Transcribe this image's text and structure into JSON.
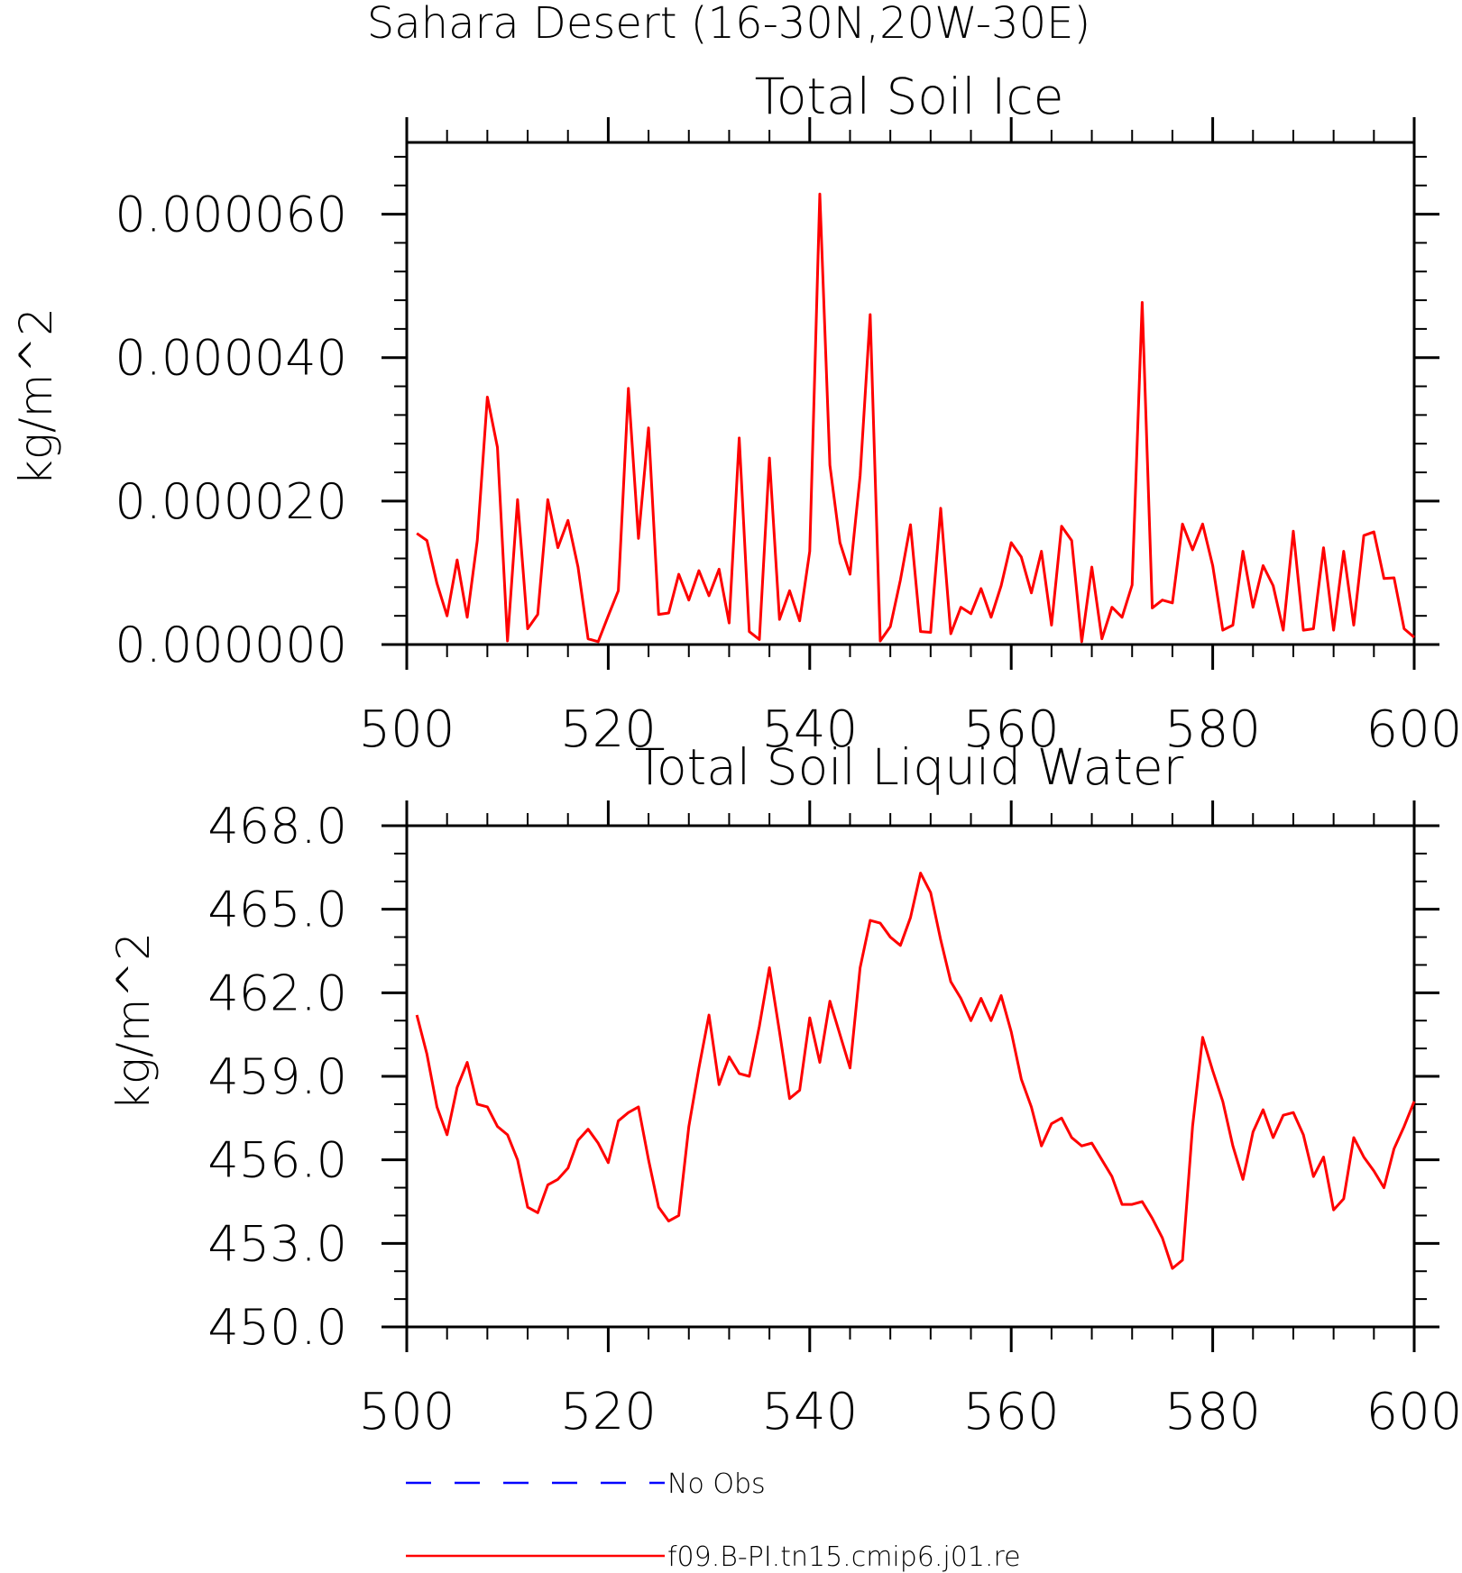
{
  "figure": {
    "suptitle": "Sahara Desert (16-30N,20W-30E)"
  },
  "chart_data": [
    {
      "type": "line",
      "title": "Total Soil Ice",
      "xlabel": "",
      "ylabel": "kg/m^2",
      "xlim": [
        500,
        600
      ],
      "ylim": [
        0,
        7e-05
      ],
      "x_ticks": [
        "500",
        "520",
        "540",
        "560",
        "580",
        "600"
      ],
      "y_ticks": [
        "0.000000",
        "0.000020",
        "0.000040",
        "0.000060"
      ],
      "y_tick_values": [
        0,
        2e-05,
        4e-05,
        6e-05
      ],
      "grid": false,
      "series": [
        {
          "name": "f09.B-PI.tn15.cmip6.j01.re",
          "color": "#ff0000",
          "x_start": 501,
          "x_step": 1,
          "values": [
            1.55e-05,
            1.45e-05,
            8.5e-06,
            4e-06,
            1.18e-05,
            3.8e-06,
            1.45e-05,
            3.45e-05,
            2.75e-05,
            5e-07,
            2.02e-05,
            2.2e-06,
            4.2e-06,
            2.02e-05,
            1.35e-05,
            1.73e-05,
            1.08e-05,
            8e-07,
            4e-07,
            4e-06,
            7.5e-06,
            3.57e-05,
            1.48e-05,
            3.02e-05,
            4.2e-06,
            4.4e-06,
            9.8e-06,
            6.2e-06,
            1.03e-05,
            6.8e-06,
            1.05e-05,
            3e-06,
            2.88e-05,
            1.8e-06,
            7e-07,
            2.6e-05,
            3.5e-06,
            7.5e-06,
            3.3e-06,
            1.3e-05,
            6.28e-05,
            2.5e-05,
            1.42e-05,
            9.8e-06,
            2.35e-05,
            4.6e-05,
            5e-07,
            2.5e-06,
            9e-06,
            1.67e-05,
            1.8e-06,
            1.7e-06,
            1.9e-05,
            1.5e-06,
            5.2e-06,
            4.3e-06,
            7.8e-06,
            3.8e-06,
            8.2e-06,
            1.42e-05,
            1.22e-05,
            7.2e-06,
            1.3e-05,
            2.7e-06,
            1.65e-05,
            1.45e-05,
            4e-07,
            1.08e-05,
            8e-07,
            5.2e-06,
            3.8e-06,
            8.3e-06,
            4.77e-05,
            5.1e-06,
            6.2e-06,
            5.8e-06,
            1.68e-05,
            1.32e-05,
            1.68e-05,
            1.1e-05,
            2e-06,
            2.7e-06,
            1.3e-05,
            5.2e-06,
            1.1e-05,
            8.2e-06,
            2e-06,
            1.58e-05,
            2e-06,
            2.2e-06,
            1.35e-05,
            2e-06,
            1.3e-05,
            2.7e-06,
            1.52e-05,
            1.57e-05,
            9.2e-06,
            9.3e-06,
            2.2e-06,
            1e-06
          ]
        }
      ]
    },
    {
      "type": "line",
      "title": "Total Soil Liquid Water",
      "xlabel": "",
      "ylabel": "kg/m^2",
      "xlim": [
        500,
        600
      ],
      "ylim": [
        450,
        468
      ],
      "x_ticks": [
        "500",
        "520",
        "540",
        "560",
        "580",
        "600"
      ],
      "y_ticks": [
        "450.0",
        "453.0",
        "456.0",
        "459.0",
        "462.0",
        "465.0",
        "468.0"
      ],
      "y_tick_values": [
        450,
        453,
        456,
        459,
        462,
        465,
        468
      ],
      "grid": false,
      "series": [
        {
          "name": "f09.B-PI.tn15.cmip6.j01.re",
          "color": "#ff0000",
          "x_start": 501,
          "x_step": 1,
          "values": [
            461.2,
            459.8,
            457.9,
            456.9,
            458.6,
            459.5,
            458.0,
            457.9,
            457.2,
            456.9,
            456.0,
            454.3,
            454.1,
            455.1,
            455.3,
            455.7,
            456.7,
            457.1,
            456.6,
            455.9,
            457.4,
            457.7,
            457.9,
            456.0,
            454.3,
            453.8,
            454.0,
            457.2,
            459.3,
            461.2,
            458.7,
            459.7,
            459.1,
            459.0,
            460.8,
            462.9,
            460.6,
            458.2,
            458.5,
            461.1,
            459.5,
            461.7,
            460.5,
            459.3,
            462.9,
            464.6,
            464.5,
            464.0,
            463.7,
            464.7,
            466.3,
            465.6,
            463.9,
            462.4,
            461.8,
            461.0,
            461.8,
            461.0,
            461.9,
            460.6,
            458.9,
            457.9,
            456.5,
            457.3,
            457.5,
            456.8,
            456.5,
            456.6,
            456.0,
            455.4,
            454.4,
            454.4,
            454.5,
            453.9,
            453.2,
            452.1,
            452.4,
            457.2,
            460.4,
            459.2,
            458.1,
            456.5,
            455.3,
            457.0,
            457.8,
            456.8,
            457.6,
            457.7,
            456.9,
            455.4,
            456.1,
            454.2,
            454.6,
            456.8,
            456.1,
            455.6,
            455.0,
            456.4,
            457.2,
            458.1
          ]
        }
      ]
    }
  ],
  "legend": {
    "placement": "bottom-center",
    "items": [
      {
        "label": "No Obs",
        "color": "#0000ff",
        "style": "dashed"
      },
      {
        "label": "f09.B-PI.tn15.cmip6.j01.re",
        "color": "#ff0000",
        "style": "solid"
      }
    ]
  }
}
